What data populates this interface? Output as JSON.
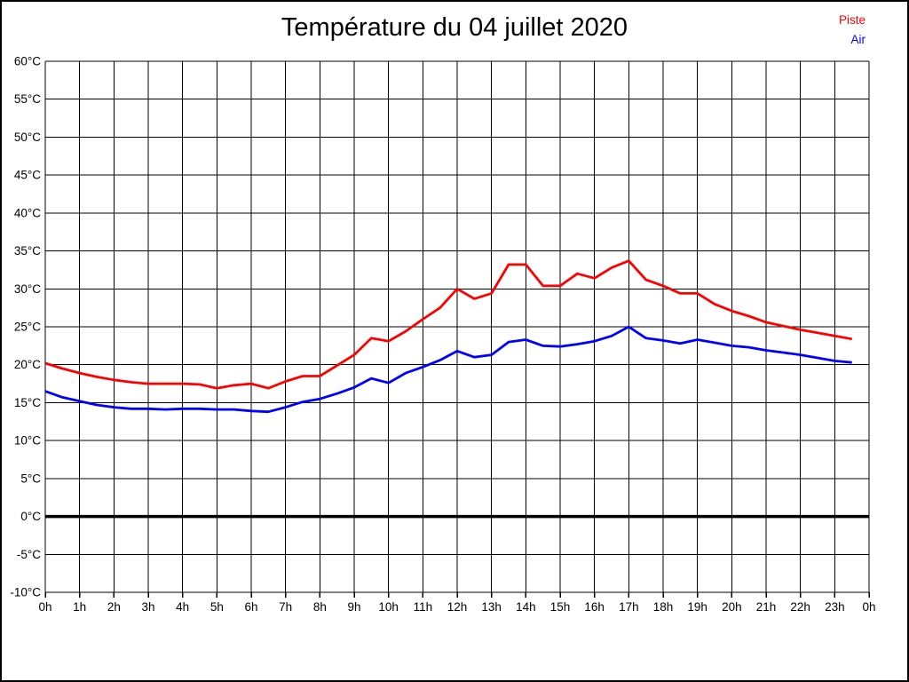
{
  "title": "Température du 04 juillet 2020",
  "chart_data": {
    "type": "line",
    "title": "Température du 04 juillet 2020",
    "grid": true,
    "legend_position": "top-right",
    "x_axis": {
      "unit": "h",
      "tick_labels": [
        "0h",
        "1h",
        "2h",
        "3h",
        "4h",
        "5h",
        "6h",
        "7h",
        "8h",
        "9h",
        "10h",
        "11h",
        "12h",
        "13h",
        "14h",
        "15h",
        "16h",
        "17h",
        "18h",
        "19h",
        "20h",
        "21h",
        "22h",
        "23h",
        "0h"
      ]
    },
    "y_axis": {
      "min": -10,
      "max": 60,
      "step": 5,
      "suffix": "°C"
    },
    "zero_line": {
      "value": 0,
      "color": "#000000"
    },
    "x_hours": [
      0,
      0.5,
      1,
      1.5,
      2,
      2.5,
      3,
      3.5,
      4,
      4.5,
      5,
      5.5,
      6,
      6.5,
      7,
      7.5,
      8,
      8.5,
      9,
      9.5,
      10,
      10.5,
      11,
      11.5,
      12,
      12.5,
      13,
      13.5,
      14,
      14.5,
      15,
      15.5,
      16,
      16.5,
      17,
      17.5,
      18,
      18.5,
      19,
      19.5,
      20,
      20.5,
      21,
      21.5,
      22,
      22.5,
      23,
      23.5
    ],
    "series": [
      {
        "name": "Piste",
        "color": "#ff0000",
        "values": [
          20.2,
          19.5,
          18.9,
          18.4,
          18.0,
          17.7,
          17.5,
          17.5,
          17.5,
          17.4,
          16.9,
          17.3,
          17.5,
          16.9,
          17.8,
          18.5,
          18.5,
          19.9,
          21.3,
          23.5,
          23.1,
          24.4,
          26.0,
          27.5,
          30.0,
          28.7,
          29.4,
          33.2,
          33.2,
          30.4,
          30.4,
          32.0,
          31.4,
          32.8,
          33.7,
          31.2,
          30.4,
          29.4,
          29.4,
          28.0,
          27.1,
          26.4,
          25.6,
          25.1,
          24.6,
          24.2,
          23.8,
          23.4
        ]
      },
      {
        "name": "Air",
        "color": "#0000ff",
        "values": [
          16.5,
          15.7,
          15.2,
          14.7,
          14.4,
          14.2,
          14.2,
          14.1,
          14.2,
          14.2,
          14.1,
          14.1,
          13.9,
          13.8,
          14.4,
          15.1,
          15.5,
          16.2,
          17.0,
          18.2,
          17.6,
          18.9,
          19.7,
          20.6,
          21.8,
          21.0,
          21.3,
          23.0,
          23.3,
          22.5,
          22.4,
          22.7,
          23.1,
          23.8,
          25.0,
          23.5,
          23.2,
          22.8,
          23.3,
          22.9,
          22.5,
          22.3,
          21.9,
          21.6,
          21.3,
          20.9,
          20.5,
          20.3
        ]
      }
    ]
  }
}
